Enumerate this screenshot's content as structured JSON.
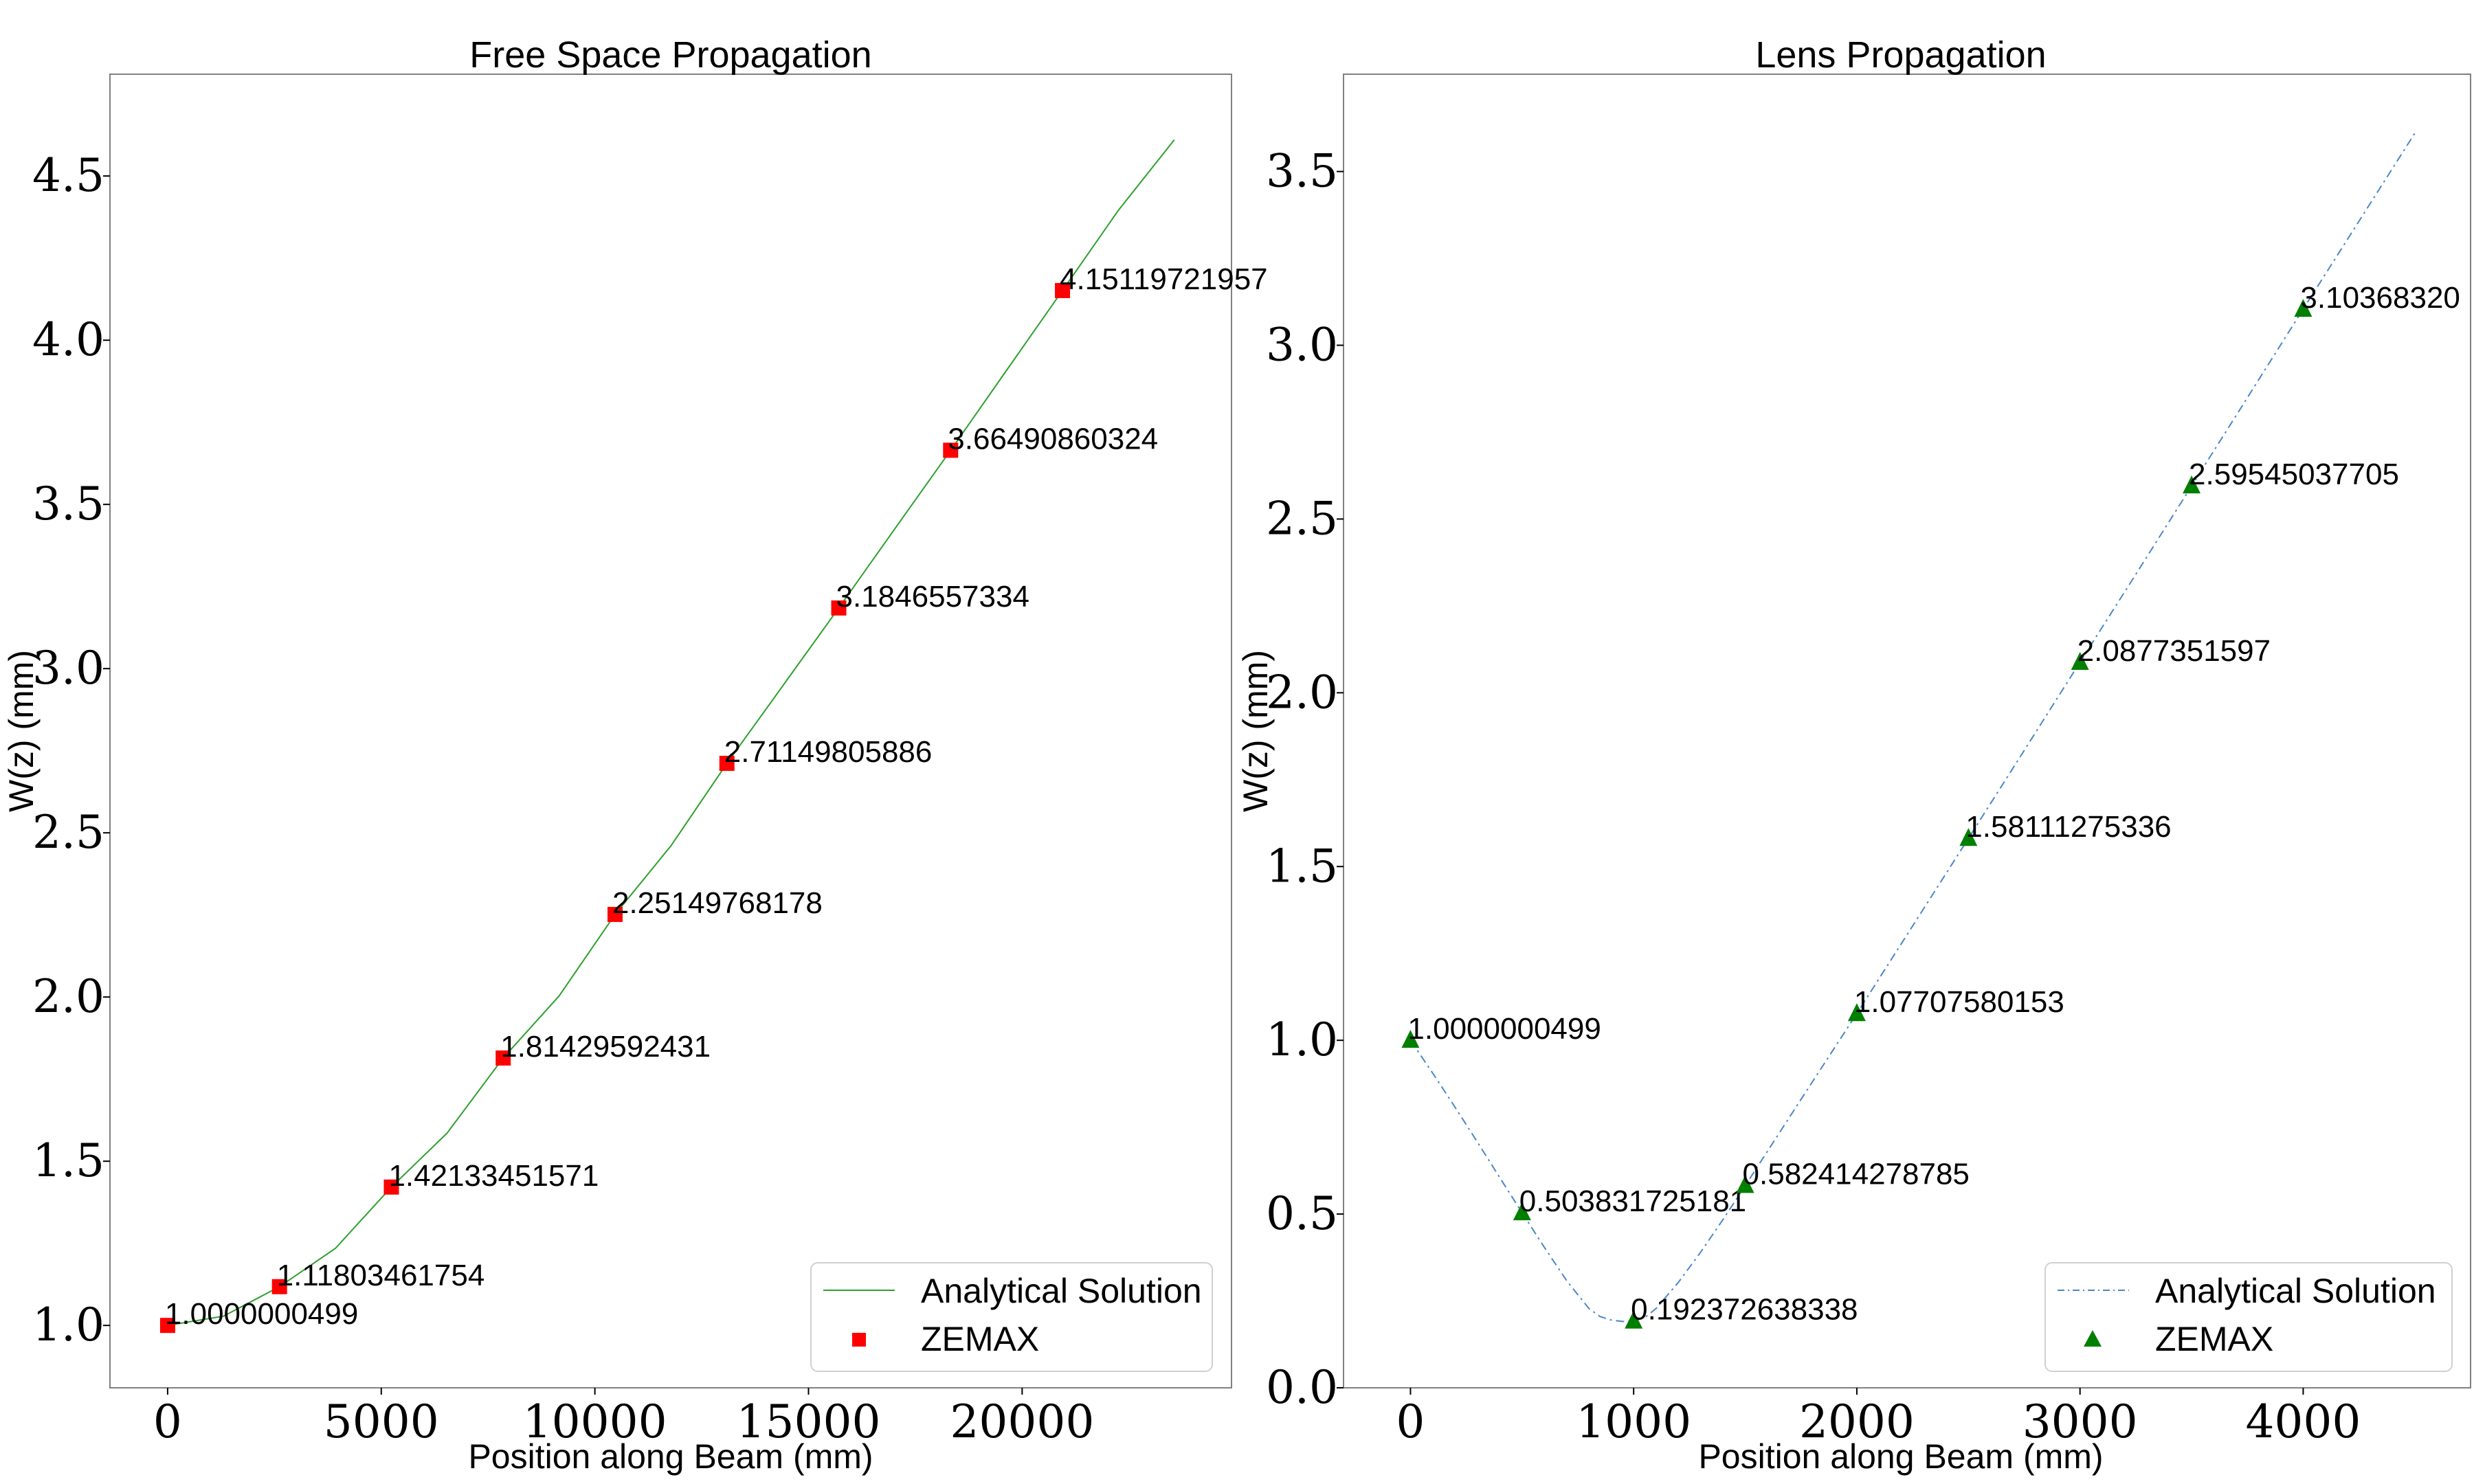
{
  "chart_data": [
    {
      "type": "line",
      "title": "Free Space Propagation",
      "xlabel": "Position along Beam (mm)",
      "ylabel": "W(z) (mm)",
      "xlim": [
        -1350,
        24900
      ],
      "ylim": [
        0.81,
        4.81
      ],
      "xticks": [
        0,
        5000,
        10000,
        15000,
        20000
      ],
      "xtick_labels": [
        "0",
        "5000",
        "10000",
        "15000",
        "20000"
      ],
      "yticks": [
        1.0,
        1.5,
        2.0,
        2.5,
        3.0,
        3.5,
        4.0,
        4.5
      ],
      "ytick_labels": [
        "1.0",
        "1.5",
        "2.0",
        "2.5",
        "3.0",
        "3.5",
        "4.0",
        "4.5"
      ],
      "grid": false,
      "legend_position": "lower-right",
      "series": [
        {
          "name": "Analytical Solution",
          "kind": "line",
          "color": "#2ca02c",
          "style": "solid",
          "x": [
            0,
            1309,
            2618,
            3927,
            5236,
            6545,
            7854,
            9163,
            10472,
            11781,
            13090,
            14399,
            15708,
            17017,
            18326,
            19635,
            20944,
            22253,
            23562
          ],
          "y": [
            1.0,
            1.0281,
            1.118,
            1.2346,
            1.4213,
            1.5861,
            1.8143,
            2.0034,
            2.2515,
            2.4606,
            2.7115,
            2.9476,
            3.1847,
            3.4252,
            3.6649,
            3.9084,
            4.1512,
            4.3955,
            4.6102
          ]
        },
        {
          "name": "ZEMAX",
          "kind": "scatter",
          "marker": "square",
          "color": "#ff0000",
          "x": [
            0,
            2618,
            5236,
            7854,
            10472,
            13090,
            15708,
            18326,
            20944
          ],
          "y": [
            1.0000000499,
            1.11803461754,
            1.42133451571,
            1.81429592431,
            2.25149768178,
            2.71149805886,
            3.1846557334,
            3.66490860324,
            4.15119721957
          ],
          "labels": [
            "1.0000000499",
            "1.11803461754",
            "1.42133451571",
            "1.81429592431",
            "2.25149768178",
            "2.71149805886",
            "3.1846557334",
            "3.66490860324",
            "4.15119721957"
          ]
        }
      ]
    },
    {
      "type": "line",
      "title": "Lens Propagation",
      "xlabel": "Position along Beam (mm)",
      "ylabel": "W(z) (mm)",
      "xlim": [
        -300,
        4750
      ],
      "ylim": [
        0.0,
        3.78
      ],
      "xticks": [
        0,
        1000,
        2000,
        3000,
        4000
      ],
      "xtick_labels": [
        "0",
        "1000",
        "2000",
        "3000",
        "4000"
      ],
      "yticks": [
        0.0,
        0.5,
        1.0,
        1.5,
        2.0,
        2.5,
        3.0,
        3.5
      ],
      "ytick_labels": [
        "0.0",
        "0.5",
        "1.0",
        "1.5",
        "2.0",
        "2.5",
        "3.0",
        "3.5"
      ],
      "grid": false,
      "legend_position": "lower-right",
      "series": [
        {
          "name": "Analytical Solution",
          "kind": "line",
          "color": "#4a86c8",
          "style": "dashdot",
          "x": [
            0,
            100,
            200,
            300,
            400,
            500,
            600,
            700,
            800,
            850,
            900,
            950,
            1000,
            1050,
            1100,
            1200,
            1300,
            1400,
            1500,
            1750,
            2000,
            2250,
            2500,
            2750,
            3000,
            3250,
            3500,
            3750,
            4000,
            4250,
            4500
          ],
          "y": [
            1.0,
            0.905,
            0.807,
            0.707,
            0.605,
            0.504,
            0.404,
            0.308,
            0.228,
            0.205,
            0.195,
            0.191,
            0.192,
            0.202,
            0.228,
            0.303,
            0.39,
            0.484,
            0.582,
            0.83,
            1.077,
            1.329,
            1.581,
            1.834,
            2.088,
            2.341,
            2.595,
            2.849,
            3.104,
            3.357,
            3.61
          ]
        },
        {
          "name": "ZEMAX",
          "kind": "scatter",
          "marker": "triangle",
          "color": "#007f00",
          "x": [
            0,
            500,
            1000,
            1500,
            2000,
            2500,
            3000,
            3500,
            4000
          ],
          "y": [
            1.0000000499,
            0.503831725181,
            0.192372638338,
            0.582414278785,
            1.07707580153,
            1.58111275336,
            2.0877351597,
            2.59545037705,
            3.1036832
          ],
          "labels": [
            "1.0000000499",
            "0.503831725181",
            "0.192372638338",
            "0.582414278785",
            "1.07707580153",
            "1.58111275336",
            "2.0877351597",
            "2.59545037705",
            "3.10368320"
          ]
        }
      ]
    }
  ]
}
